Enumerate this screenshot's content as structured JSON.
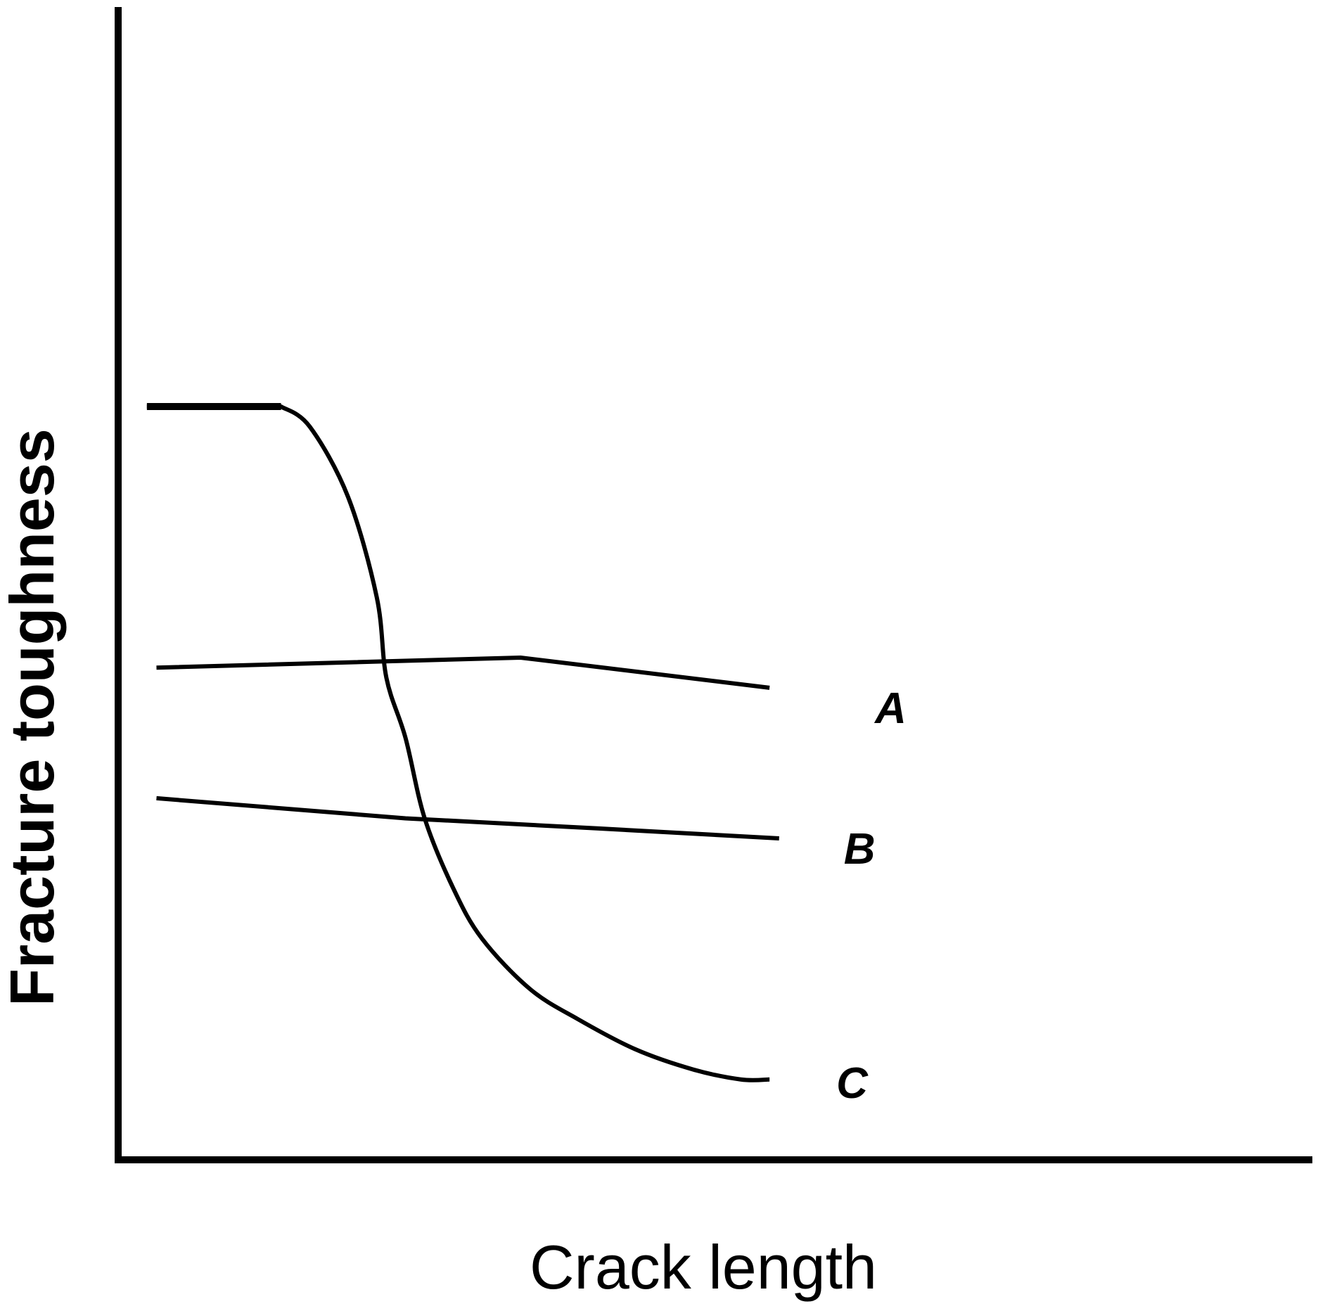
{
  "chart_data": {
    "type": "line",
    "title": "",
    "xlabel": "Crack length",
    "ylabel": "Fracture  toughness",
    "xlim": [
      0,
      100
    ],
    "ylim": [
      0,
      100
    ],
    "grid": false,
    "legend": "none",
    "tick_labels": false,
    "line_color": "#000000",
    "series": [
      {
        "name": "A",
        "x": [
          4,
          42,
          68
        ],
        "y": [
          49,
          50,
          47
        ]
      },
      {
        "name": "B",
        "x": [
          4,
          30,
          50,
          69
        ],
        "y": [
          36,
          34,
          33,
          32
        ]
      },
      {
        "name": "C",
        "x": [
          3,
          17,
          20,
          24,
          27,
          28,
          30,
          32,
          35,
          38,
          43,
          48,
          54,
          60,
          65,
          68
        ],
        "y": [
          75,
          75,
          73,
          66,
          56,
          48,
          42,
          34,
          27,
          22,
          17,
          14,
          11,
          9,
          8,
          8
        ]
      }
    ]
  }
}
